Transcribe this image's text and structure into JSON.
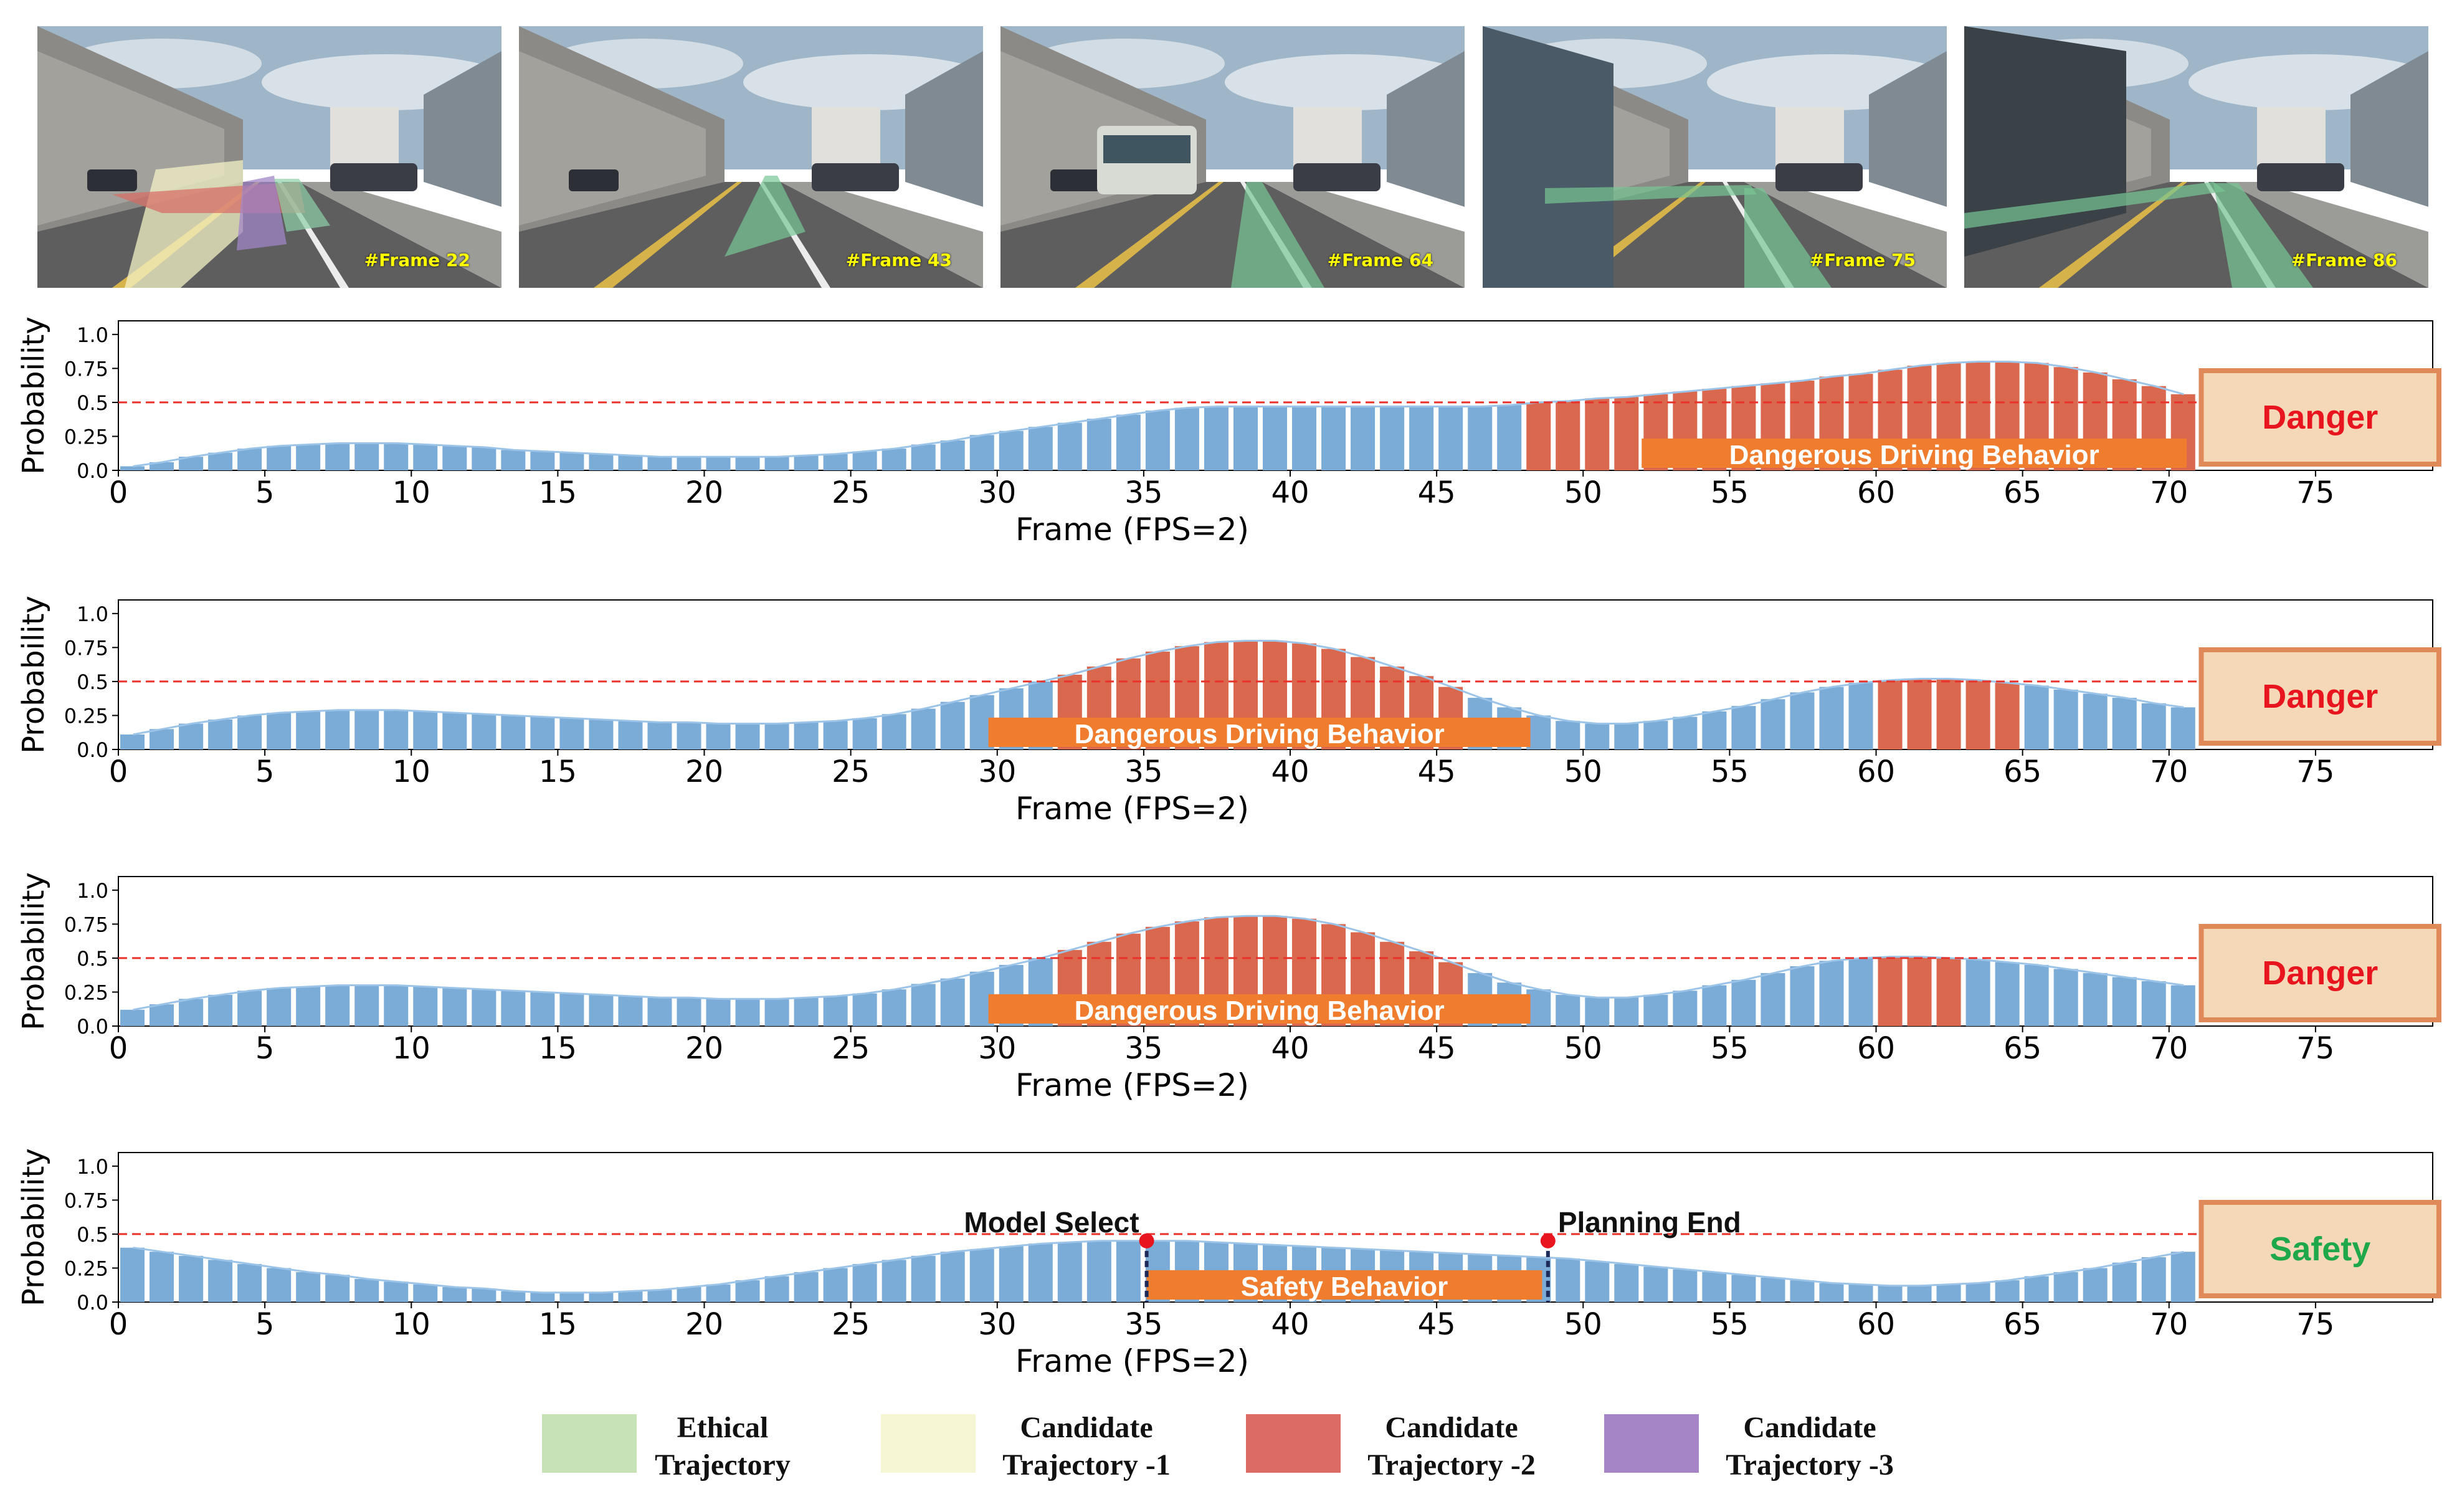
{
  "frames": [
    {
      "label": "#Frame 22",
      "overlay": "multi"
    },
    {
      "label": "#Frame 43",
      "overlay": "narrow"
    },
    {
      "label": "#Frame 64",
      "overlay": "straight"
    },
    {
      "label": "#Frame 75",
      "overlay": "straight-lane"
    },
    {
      "label": "#Frame 86",
      "overlay": "lane-change"
    }
  ],
  "colors": {
    "safe_bar": "#7bacd8",
    "danger_bar": "#d9684e",
    "curve": "#9cc4e8",
    "threshold": "#e8322a",
    "orange_bar": "#f07d2e",
    "status_box_fill": "#f5d8b8",
    "status_box_border": "#e08a5a",
    "danger_text": "#e8141e",
    "safety_text": "#1fa84a",
    "marker": "#e8141e",
    "marker_line": "#1d2a5a"
  },
  "chart_data": [
    {
      "type": "bar",
      "ylabel": "Probability",
      "xlabel": "Frame (FPS=2)",
      "x_ticks": [
        0,
        5,
        10,
        15,
        20,
        25,
        30,
        35,
        40,
        45,
        50,
        55,
        60,
        65,
        70,
        75
      ],
      "y_ticks": [
        "0.0",
        "0.25",
        "0.5",
        "0.75",
        "1.0"
      ],
      "xlim": [
        0,
        79
      ],
      "ylim": [
        0,
        1.1
      ],
      "threshold": 0.5,
      "x": [
        0,
        1,
        2,
        3,
        4,
        5,
        6,
        7,
        8,
        9,
        10,
        11,
        12,
        13,
        14,
        15,
        16,
        17,
        18,
        19,
        20,
        21,
        22,
        23,
        24,
        25,
        26,
        27,
        28,
        29,
        30,
        31,
        32,
        33,
        34,
        35,
        36,
        37,
        38,
        39,
        40,
        41,
        42,
        43,
        44,
        45,
        46,
        47,
        48,
        49,
        50,
        51,
        52,
        53,
        54,
        55,
        56,
        57,
        58,
        59,
        60,
        61,
        62,
        63,
        64,
        65,
        66,
        67,
        68,
        69,
        70
      ],
      "values": [
        0.03,
        0.06,
        0.1,
        0.13,
        0.16,
        0.18,
        0.19,
        0.2,
        0.2,
        0.2,
        0.19,
        0.18,
        0.17,
        0.15,
        0.14,
        0.13,
        0.12,
        0.11,
        0.1,
        0.1,
        0.1,
        0.1,
        0.1,
        0.11,
        0.12,
        0.14,
        0.16,
        0.19,
        0.22,
        0.26,
        0.29,
        0.32,
        0.35,
        0.38,
        0.41,
        0.44,
        0.46,
        0.47,
        0.47,
        0.47,
        0.47,
        0.47,
        0.47,
        0.47,
        0.47,
        0.47,
        0.47,
        0.48,
        0.5,
        0.51,
        0.53,
        0.54,
        0.56,
        0.58,
        0.6,
        0.62,
        0.64,
        0.66,
        0.69,
        0.71,
        0.74,
        0.77,
        0.79,
        0.8,
        0.8,
        0.79,
        0.76,
        0.72,
        0.67,
        0.62,
        0.56
      ],
      "danger_bars": [
        48,
        49,
        50,
        51,
        52,
        53,
        54,
        55,
        56,
        57,
        58,
        59,
        60,
        61,
        62,
        63,
        64,
        65,
        66,
        67,
        68,
        69,
        70
      ],
      "behavior_bar": {
        "label": "Dangerous Driving Behavior",
        "start": 52,
        "end": 70.6
      },
      "status": {
        "label": "Danger",
        "kind": "danger"
      }
    },
    {
      "type": "bar",
      "ylabel": "Probability",
      "xlabel": "Frame (FPS=2)",
      "x_ticks": [
        0,
        5,
        10,
        15,
        20,
        25,
        30,
        35,
        40,
        45,
        50,
        55,
        60,
        65,
        70,
        75
      ],
      "y_ticks": [
        "0.0",
        "0.25",
        "0.5",
        "0.75",
        "1.0"
      ],
      "xlim": [
        0,
        79
      ],
      "ylim": [
        0,
        1.1
      ],
      "threshold": 0.5,
      "x": [
        0,
        1,
        2,
        3,
        4,
        5,
        6,
        7,
        8,
        9,
        10,
        11,
        12,
        13,
        14,
        15,
        16,
        17,
        18,
        19,
        20,
        21,
        22,
        23,
        24,
        25,
        26,
        27,
        28,
        29,
        30,
        31,
        32,
        33,
        34,
        35,
        36,
        37,
        38,
        39,
        40,
        41,
        42,
        43,
        44,
        45,
        46,
        47,
        48,
        49,
        50,
        51,
        52,
        53,
        54,
        55,
        56,
        57,
        58,
        59,
        60,
        61,
        62,
        63,
        64,
        65,
        66,
        67,
        68,
        69,
        70
      ],
      "values": [
        0.11,
        0.15,
        0.19,
        0.22,
        0.25,
        0.27,
        0.28,
        0.29,
        0.29,
        0.29,
        0.28,
        0.27,
        0.26,
        0.25,
        0.24,
        0.23,
        0.22,
        0.21,
        0.2,
        0.2,
        0.19,
        0.19,
        0.19,
        0.2,
        0.21,
        0.23,
        0.26,
        0.3,
        0.35,
        0.4,
        0.45,
        0.5,
        0.55,
        0.61,
        0.67,
        0.72,
        0.76,
        0.79,
        0.8,
        0.8,
        0.78,
        0.74,
        0.68,
        0.61,
        0.54,
        0.46,
        0.38,
        0.31,
        0.25,
        0.21,
        0.19,
        0.19,
        0.21,
        0.24,
        0.28,
        0.32,
        0.37,
        0.42,
        0.46,
        0.49,
        0.51,
        0.52,
        0.52,
        0.51,
        0.49,
        0.47,
        0.44,
        0.41,
        0.38,
        0.34,
        0.31
      ],
      "danger_bars": [
        32,
        33,
        34,
        35,
        36,
        37,
        38,
        39,
        40,
        41,
        42,
        43,
        44,
        45,
        60,
        61,
        62,
        63,
        64
      ],
      "behavior_bar": {
        "label": "Dangerous Driving Behavior",
        "start": 29.7,
        "end": 48.2
      },
      "status": {
        "label": "Danger",
        "kind": "danger"
      }
    },
    {
      "type": "bar",
      "ylabel": "Probability",
      "xlabel": "Frame (FPS=2)",
      "x_ticks": [
        0,
        5,
        10,
        15,
        20,
        25,
        30,
        35,
        40,
        45,
        50,
        55,
        60,
        65,
        70,
        75
      ],
      "y_ticks": [
        "0.0",
        "0.25",
        "0.5",
        "0.75",
        "1.0"
      ],
      "xlim": [
        0,
        79
      ],
      "ylim": [
        0,
        1.1
      ],
      "threshold": 0.5,
      "x": [
        0,
        1,
        2,
        3,
        4,
        5,
        6,
        7,
        8,
        9,
        10,
        11,
        12,
        13,
        14,
        15,
        16,
        17,
        18,
        19,
        20,
        21,
        22,
        23,
        24,
        25,
        26,
        27,
        28,
        29,
        30,
        31,
        32,
        33,
        34,
        35,
        36,
        37,
        38,
        39,
        40,
        41,
        42,
        43,
        44,
        45,
        46,
        47,
        48,
        49,
        50,
        51,
        52,
        53,
        54,
        55,
        56,
        57,
        58,
        59,
        60,
        61,
        62,
        63,
        64,
        65,
        66,
        67,
        68,
        69,
        70
      ],
      "values": [
        0.12,
        0.16,
        0.2,
        0.23,
        0.26,
        0.28,
        0.29,
        0.3,
        0.3,
        0.3,
        0.29,
        0.28,
        0.27,
        0.26,
        0.25,
        0.24,
        0.23,
        0.22,
        0.21,
        0.21,
        0.2,
        0.2,
        0.2,
        0.21,
        0.22,
        0.24,
        0.27,
        0.31,
        0.35,
        0.4,
        0.45,
        0.5,
        0.56,
        0.62,
        0.68,
        0.73,
        0.77,
        0.8,
        0.81,
        0.81,
        0.79,
        0.75,
        0.69,
        0.62,
        0.55,
        0.47,
        0.39,
        0.32,
        0.27,
        0.23,
        0.21,
        0.21,
        0.23,
        0.26,
        0.3,
        0.34,
        0.39,
        0.44,
        0.48,
        0.5,
        0.51,
        0.51,
        0.5,
        0.49,
        0.47,
        0.45,
        0.42,
        0.39,
        0.36,
        0.33,
        0.3
      ],
      "danger_bars": [
        32,
        33,
        34,
        35,
        36,
        37,
        38,
        39,
        40,
        41,
        42,
        43,
        44,
        45,
        60,
        61,
        62
      ],
      "behavior_bar": {
        "label": "Dangerous Driving Behavior",
        "start": 29.7,
        "end": 48.2
      },
      "status": {
        "label": "Danger",
        "kind": "danger"
      }
    },
    {
      "type": "bar",
      "ylabel": "Probability",
      "xlabel": "Frame (FPS=2)",
      "x_ticks": [
        0,
        5,
        10,
        15,
        20,
        25,
        30,
        35,
        40,
        45,
        50,
        55,
        60,
        65,
        70,
        75
      ],
      "y_ticks": [
        "0.0",
        "0.25",
        "0.5",
        "0.75",
        "1.0"
      ],
      "xlim": [
        0,
        79
      ],
      "ylim": [
        0,
        1.1
      ],
      "threshold": 0.5,
      "x": [
        0,
        1,
        2,
        3,
        4,
        5,
        6,
        7,
        8,
        9,
        10,
        11,
        12,
        13,
        14,
        15,
        16,
        17,
        18,
        19,
        20,
        21,
        22,
        23,
        24,
        25,
        26,
        27,
        28,
        29,
        30,
        31,
        32,
        33,
        34,
        35,
        36,
        37,
        38,
        39,
        40,
        41,
        42,
        43,
        44,
        45,
        46,
        47,
        48,
        49,
        50,
        51,
        52,
        53,
        54,
        55,
        56,
        57,
        58,
        59,
        60,
        61,
        62,
        63,
        64,
        65,
        66,
        67,
        68,
        69,
        70
      ],
      "values": [
        0.4,
        0.37,
        0.34,
        0.31,
        0.28,
        0.25,
        0.22,
        0.2,
        0.17,
        0.15,
        0.13,
        0.11,
        0.1,
        0.08,
        0.07,
        0.07,
        0.07,
        0.08,
        0.09,
        0.11,
        0.13,
        0.16,
        0.19,
        0.22,
        0.25,
        0.28,
        0.31,
        0.34,
        0.37,
        0.39,
        0.41,
        0.43,
        0.44,
        0.45,
        0.45,
        0.45,
        0.45,
        0.44,
        0.43,
        0.42,
        0.41,
        0.4,
        0.39,
        0.38,
        0.37,
        0.36,
        0.35,
        0.34,
        0.33,
        0.32,
        0.3,
        0.28,
        0.26,
        0.24,
        0.22,
        0.2,
        0.18,
        0.16,
        0.14,
        0.13,
        0.12,
        0.12,
        0.13,
        0.14,
        0.16,
        0.19,
        0.22,
        0.25,
        0.29,
        0.33,
        0.37
      ],
      "danger_bars": [],
      "behavior_bar": {
        "label": "Safety Behavior",
        "start": 35.1,
        "end": 48.6
      },
      "markers": [
        {
          "label": "Model Select",
          "x": 35.1,
          "y": 0.45
        },
        {
          "label": "Planning End",
          "x": 48.8,
          "y": 0.45
        }
      ],
      "status": {
        "label": "Safety",
        "kind": "safety"
      }
    }
  ],
  "legend": [
    {
      "line1": "Ethical",
      "line2": "Trajectory",
      "color": "#c8e2b8"
    },
    {
      "line1": "Candidate",
      "line2": "Trajectory -1",
      "color": "#f6f6d4"
    },
    {
      "line1": "Candidate",
      "line2": "Trajectory -2",
      "color": "#dc6b64"
    },
    {
      "line1": "Candidate",
      "line2": "Trajectory -3",
      "color": "#a585c5"
    }
  ]
}
